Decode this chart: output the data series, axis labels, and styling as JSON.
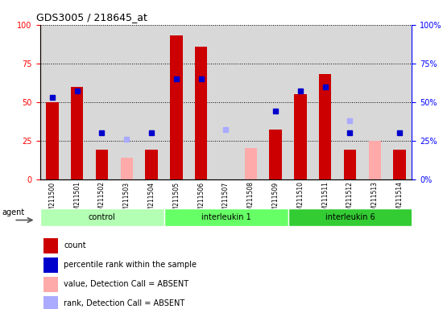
{
  "title": "GDS3005 / 218645_at",
  "samples": [
    "GSM211500",
    "GSM211501",
    "GSM211502",
    "GSM211503",
    "GSM211504",
    "GSM211505",
    "GSM211506",
    "GSM211507",
    "GSM211508",
    "GSM211509",
    "GSM211510",
    "GSM211511",
    "GSM211512",
    "GSM211513",
    "GSM211514"
  ],
  "groups": [
    {
      "label": "control",
      "start": 0,
      "end": 4,
      "color": "#b3ffb3"
    },
    {
      "label": "interleukin 1",
      "start": 5,
      "end": 9,
      "color": "#66ff66"
    },
    {
      "label": "interleukin 6",
      "start": 10,
      "end": 14,
      "color": "#33cc33"
    }
  ],
  "count": [
    50,
    60,
    19,
    null,
    19,
    93,
    86,
    null,
    null,
    32,
    55,
    68,
    19,
    null,
    19
  ],
  "count_absent": [
    null,
    null,
    null,
    14,
    null,
    null,
    null,
    null,
    20,
    null,
    null,
    null,
    null,
    25,
    null
  ],
  "percentile_rank": [
    53,
    57,
    30,
    null,
    30,
    65,
    65,
    null,
    null,
    44,
    57,
    60,
    30,
    null,
    30
  ],
  "rank_absent": [
    null,
    null,
    null,
    26,
    null,
    null,
    null,
    32,
    null,
    null,
    null,
    null,
    38,
    null,
    null
  ],
  "ylim_left": [
    0,
    100
  ],
  "ylim_right": [
    0,
    100
  ],
  "yticks": [
    0,
    25,
    50,
    75,
    100
  ],
  "bar_color_red": "#cc0000",
  "bar_color_pink": "#ffaaaa",
  "dot_color_blue": "#0000cc",
  "dot_color_lightblue": "#aaaaff",
  "agent_label": "agent",
  "legend_items": [
    {
      "color": "#cc0000",
      "label": "count"
    },
    {
      "color": "#0000cc",
      "label": "percentile rank within the sample"
    },
    {
      "color": "#ffaaaa",
      "label": "value, Detection Call = ABSENT"
    },
    {
      "color": "#aaaaff",
      "label": "rank, Detection Call = ABSENT"
    }
  ],
  "bg_color": "#d8d8d8"
}
